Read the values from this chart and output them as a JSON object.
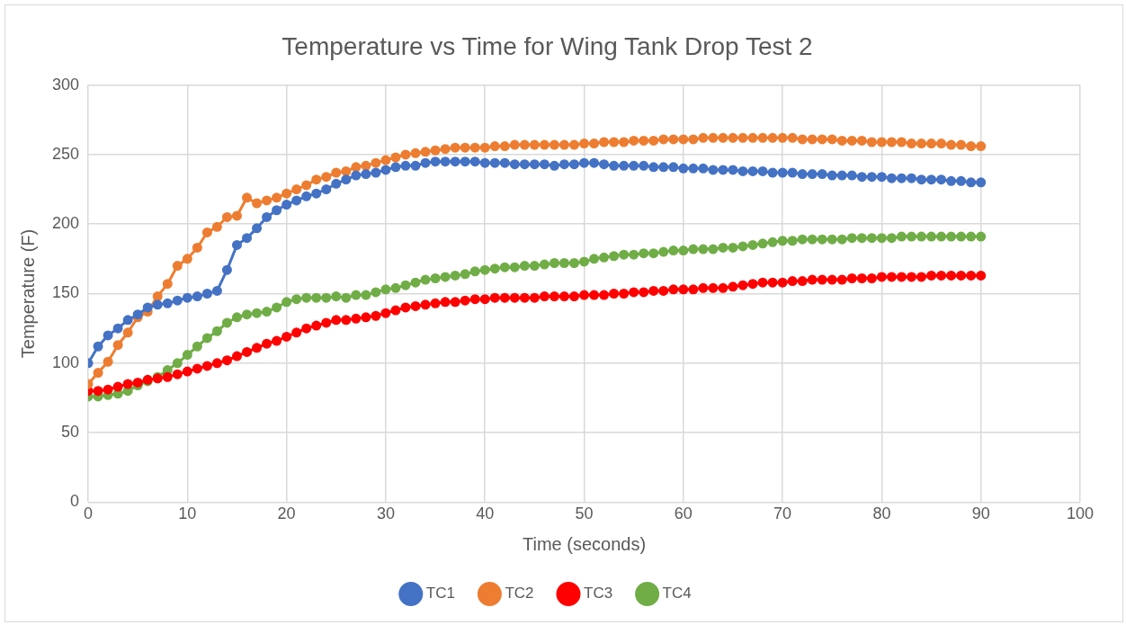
{
  "chart_data": {
    "type": "line",
    "title": "Temperature vs Time for Wing Tank Drop Test 2",
    "xlabel": "Time (seconds)",
    "ylabel": "Temperature (F)",
    "x": [
      0,
      1,
      2,
      3,
      4,
      5,
      6,
      7,
      8,
      9,
      10,
      11,
      12,
      13,
      14,
      15,
      16,
      17,
      18,
      19,
      20,
      21,
      22,
      23,
      24,
      25,
      26,
      27,
      28,
      29,
      30,
      31,
      32,
      33,
      34,
      35,
      36,
      37,
      38,
      39,
      40,
      41,
      42,
      43,
      44,
      45,
      46,
      47,
      48,
      49,
      50,
      51,
      52,
      53,
      54,
      55,
      56,
      57,
      58,
      59,
      60,
      61,
      62,
      63,
      64,
      65,
      66,
      67,
      68,
      69,
      70,
      71,
      72,
      73,
      74,
      75,
      76,
      77,
      78,
      79,
      80,
      81,
      82,
      83,
      84,
      85,
      86,
      87,
      88,
      89,
      90
    ],
    "series": [
      {
        "name": "TC1",
        "color": "#4472c4",
        "values": [
          100,
          112,
          120,
          125,
          131,
          135,
          140,
          142,
          143,
          145,
          147,
          148,
          150,
          152,
          167,
          185,
          190,
          197,
          205,
          210,
          214,
          217,
          220,
          222,
          225,
          229,
          232,
          235,
          236,
          237,
          239,
          241,
          242,
          242,
          244,
          245,
          245,
          245,
          245,
          245,
          244,
          244,
          244,
          243,
          243,
          243,
          243,
          242,
          243,
          243,
          244,
          244,
          243,
          242,
          242,
          242,
          242,
          241,
          241,
          241,
          240,
          240,
          240,
          239,
          239,
          239,
          238,
          238,
          238,
          237,
          237,
          237,
          236,
          236,
          236,
          235,
          235,
          235,
          234,
          234,
          234,
          233,
          233,
          233,
          232,
          232,
          232,
          231,
          231,
          230,
          230
        ]
      },
      {
        "name": "TC2",
        "color": "#ed7d31",
        "values": [
          85,
          93,
          101,
          113,
          122,
          133,
          137,
          148,
          157,
          170,
          175,
          183,
          194,
          198,
          205,
          206,
          219,
          215,
          217,
          219,
          222,
          225,
          228,
          232,
          234,
          237,
          238,
          241,
          242,
          244,
          246,
          248,
          250,
          251,
          252,
          253,
          254,
          255,
          255,
          255,
          255,
          256,
          256,
          257,
          257,
          257,
          257,
          257,
          257,
          257,
          258,
          258,
          259,
          259,
          259,
          260,
          260,
          260,
          261,
          261,
          261,
          261,
          262,
          262,
          262,
          262,
          262,
          262,
          262,
          262,
          262,
          262,
          261,
          261,
          261,
          261,
          260,
          260,
          260,
          259,
          259,
          259,
          259,
          258,
          258,
          258,
          258,
          257,
          257,
          256,
          256
        ]
      },
      {
        "name": "TC3",
        "color": "#ff0000",
        "values": [
          80,
          80,
          81,
          83,
          85,
          86,
          88,
          89,
          90,
          92,
          94,
          96,
          98,
          100,
          102,
          105,
          108,
          111,
          114,
          116,
          119,
          122,
          125,
          127,
          129,
          131,
          131,
          132,
          133,
          134,
          136,
          138,
          140,
          141,
          142,
          143,
          144,
          144,
          145,
          146,
          146,
          147,
          147,
          147,
          147,
          147,
          148,
          148,
          148,
          148,
          149,
          149,
          149,
          150,
          150,
          151,
          151,
          152,
          152,
          153,
          153,
          153,
          154,
          154,
          154,
          155,
          156,
          157,
          158,
          158,
          158,
          159,
          159,
          160,
          160,
          160,
          160,
          161,
          161,
          161,
          162,
          162,
          162,
          162,
          162,
          163,
          163,
          163,
          163,
          163,
          163
        ]
      },
      {
        "name": "TC4",
        "color": "#70ad47",
        "values": [
          76,
          76,
          77,
          78,
          80,
          84,
          87,
          90,
          95,
          100,
          106,
          112,
          118,
          123,
          129,
          133,
          135,
          136,
          137,
          140,
          144,
          146,
          147,
          147,
          147,
          148,
          147,
          149,
          149,
          151,
          153,
          154,
          156,
          158,
          160,
          161,
          162,
          163,
          164,
          166,
          167,
          168,
          169,
          169,
          170,
          170,
          171,
          172,
          172,
          172,
          173,
          175,
          176,
          177,
          178,
          178,
          179,
          179,
          180,
          181,
          181,
          182,
          182,
          182,
          183,
          183,
          184,
          185,
          186,
          187,
          188,
          188,
          189,
          189,
          189,
          189,
          189,
          190,
          190,
          190,
          190,
          190,
          191,
          191,
          191,
          191,
          191,
          191,
          191,
          191,
          191
        ]
      }
    ],
    "xlim": [
      0,
      100
    ],
    "xticks": [
      0,
      10,
      20,
      30,
      40,
      50,
      60,
      70,
      80,
      90,
      100
    ],
    "ylim": [
      0,
      300
    ],
    "yticks": [
      0,
      50,
      100,
      150,
      200,
      250,
      300
    ],
    "grid": true,
    "legend": "bottom",
    "marker": "circle",
    "line_style": "solid"
  }
}
